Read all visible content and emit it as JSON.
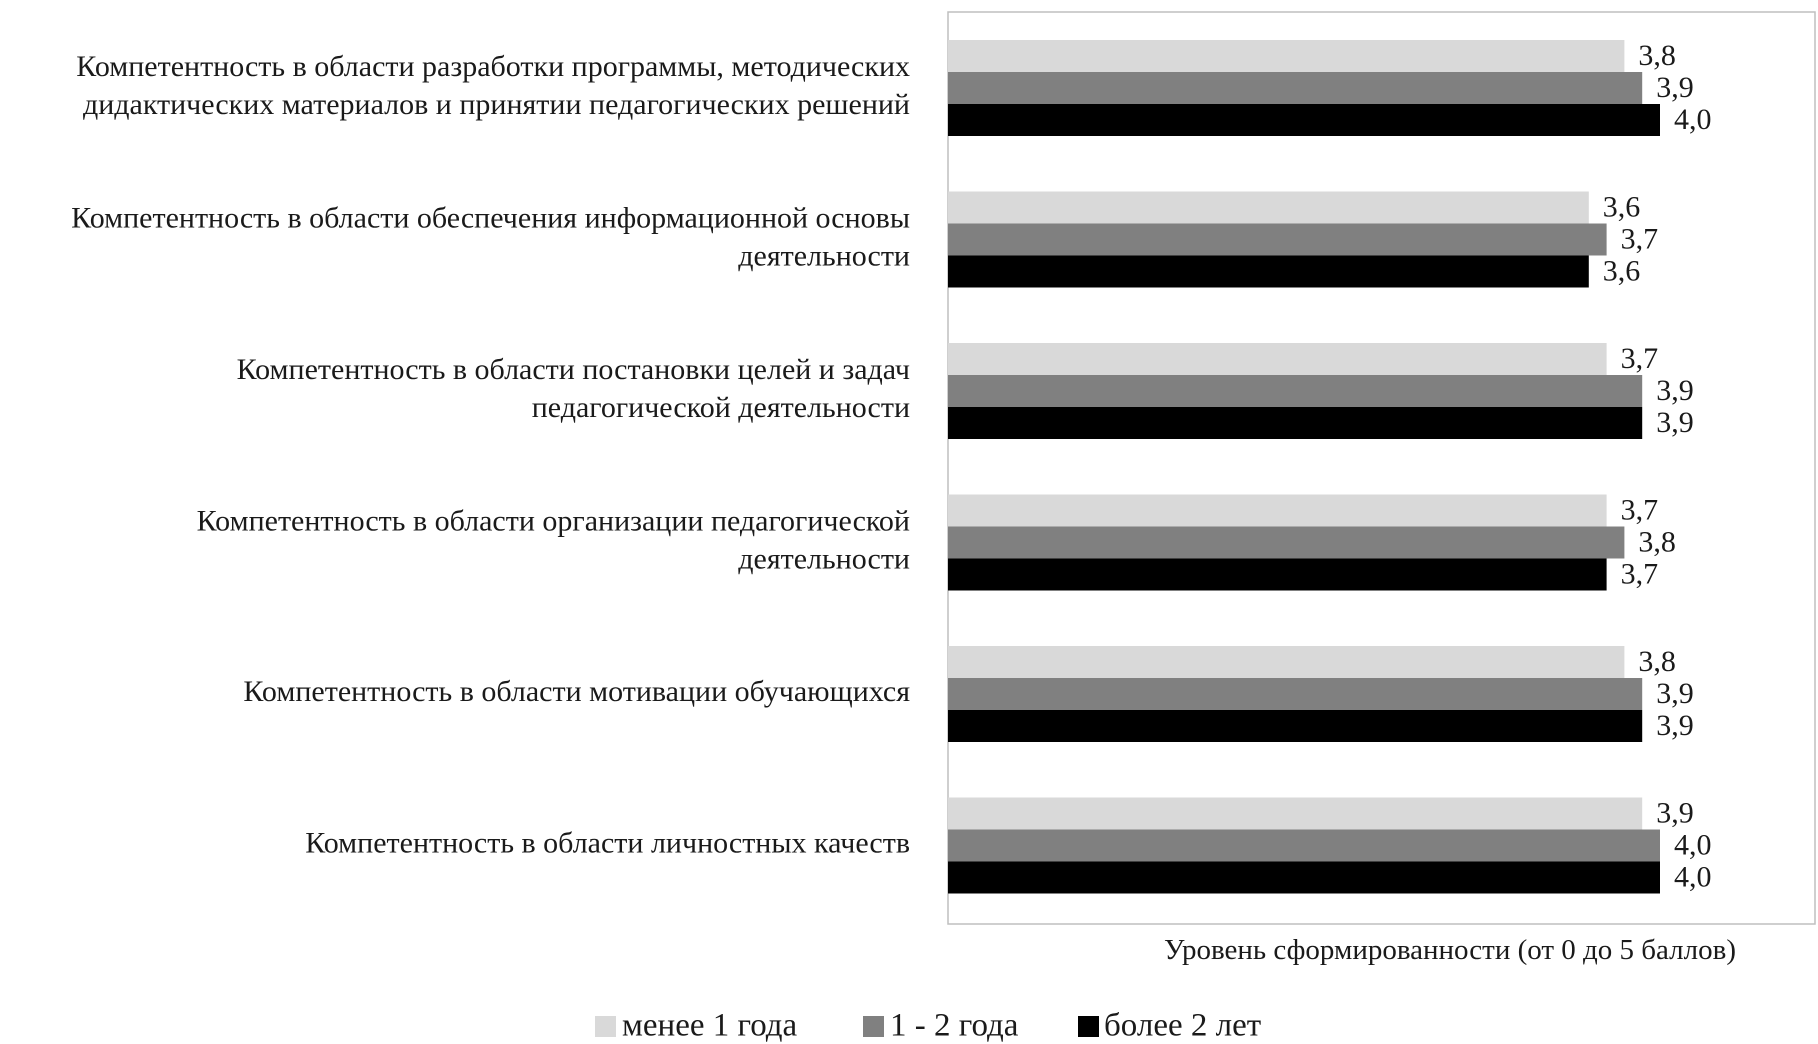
{
  "chart_data": {
    "type": "bar",
    "orientation": "horizontal",
    "categories": [
      [
        "Компетентность в области разработки программы, методических",
        "дидактических материалов и принятии педагогических решений"
      ],
      [
        "Компетентность в области обеспечения информационной основы",
        "деятельности"
      ],
      [
        "Компетентность в области постановки целей и задач",
        "педагогической деятельности"
      ],
      [
        "Компетентность в области организации педагогической",
        "деятельности"
      ],
      [
        "Компетентность в области мотивации обучающихся"
      ],
      [
        "Компетентность в области личностных качеств"
      ]
    ],
    "series": [
      {
        "name": "менее 1 года",
        "color": "#d9d9d9",
        "values": [
          3.8,
          3.6,
          3.7,
          3.7,
          3.8,
          3.9
        ],
        "labels": [
          "3,8",
          "3,6",
          "3,7",
          "3,7",
          "3,8",
          "3,9"
        ]
      },
      {
        "name": "1 - 2 года",
        "color": "#808080",
        "values": [
          3.9,
          3.7,
          3.9,
          3.8,
          3.9,
          4.0
        ],
        "labels": [
          "3,9",
          "3,7",
          "3,9",
          "3,8",
          "3,9",
          "4,0"
        ]
      },
      {
        "name": "более 2 лет",
        "color": "#000000",
        "values": [
          4.0,
          3.6,
          3.9,
          3.7,
          3.9,
          4.0
        ],
        "labels": [
          "4,0",
          "3,6",
          "3,9",
          "3,7",
          "3,9",
          "4,0"
        ]
      }
    ],
    "xlabel": "Уровень сформированности (от 0 до 5 баллов)",
    "xlim": [
      0,
      5
    ],
    "grid": false,
    "legend_position": "bottom"
  }
}
